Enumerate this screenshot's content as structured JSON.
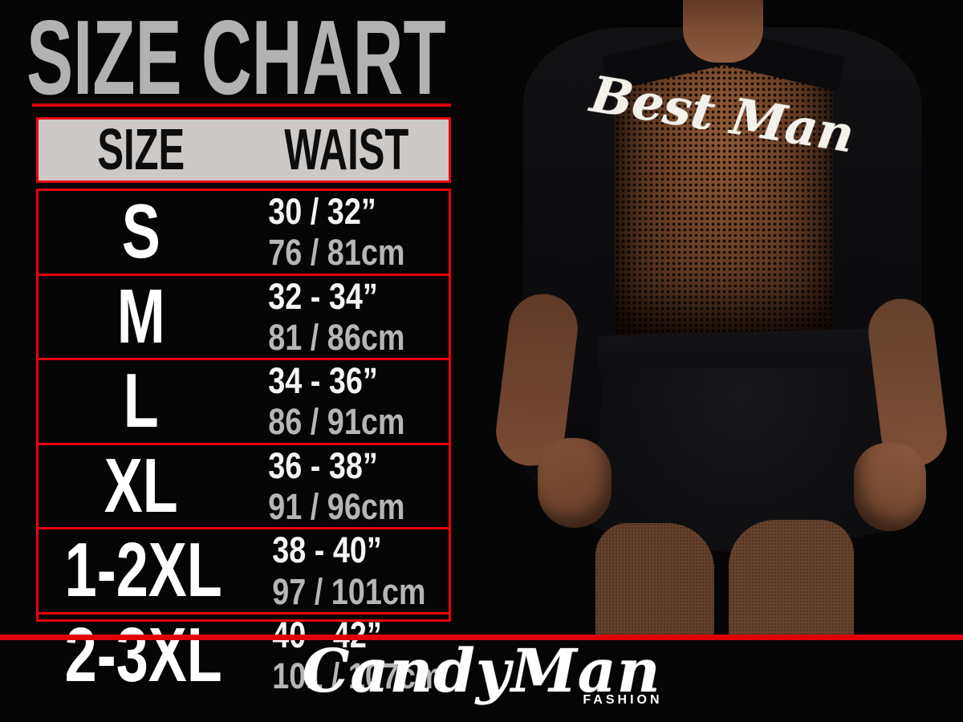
{
  "colors": {
    "background": "#050505",
    "accent_red": "#e8000d",
    "title_gray": "#b2b2b2",
    "header_bg": "#ccc9c7",
    "size_text": "#ffffff",
    "waist_cm_gray": "#b7b6b5"
  },
  "chart_data": {
    "type": "table",
    "title": "SIZE CHART",
    "columns": [
      "SIZE",
      "WAIST"
    ],
    "rows": [
      {
        "size": "S",
        "waist_inches": "30 / 32”",
        "waist_cm": "76 / 81cm"
      },
      {
        "size": "M",
        "waist_inches": "32 - 34”",
        "waist_cm": "81 / 86cm"
      },
      {
        "size": "L",
        "waist_inches": "34 - 36”",
        "waist_cm": "86 / 91cm"
      },
      {
        "size": "XL",
        "waist_inches": "36 - 38”",
        "waist_cm": "91 / 96cm"
      },
      {
        "size": "1-2XL",
        "waist_inches": "38 - 40”",
        "waist_cm": "97 / 101cm"
      },
      {
        "size": "2-3XL",
        "waist_inches": "40 - 42”",
        "waist_cm": "101 / 107cm"
      }
    ]
  },
  "photo": {
    "garment_text": "Best Man",
    "description": "back view of model wearing black mesh robe"
  },
  "footer": {
    "brand": "CandyMan",
    "tagline": "FASHION"
  }
}
